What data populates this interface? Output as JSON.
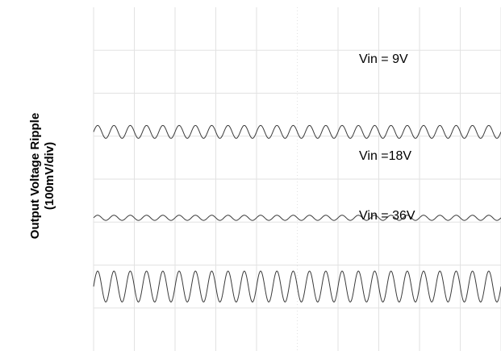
{
  "chart_data": {
    "type": "line",
    "title": "",
    "xlabel": "",
    "ylabel_lines": [
      "Output Voltage Ripple",
      "(100mV/div)"
    ],
    "grid": true,
    "colors": {
      "trace": "#3a3a3a",
      "grid": "#e2e2e2",
      "background": "#ffffff"
    },
    "x_divisions": 10,
    "y_divisions": 8,
    "series": [
      {
        "label": "Vin = 9V",
        "offset_div": 2.9,
        "amplitude_div": 0.15,
        "cycles": 25
      },
      {
        "label": "Vin =18V",
        "offset_div": 4.9,
        "amplitude_div": 0.06,
        "cycles": 25
      },
      {
        "label": "Vin = 36V",
        "offset_div": 6.5,
        "amplitude_div": 0.36,
        "cycles": 25
      }
    ]
  }
}
